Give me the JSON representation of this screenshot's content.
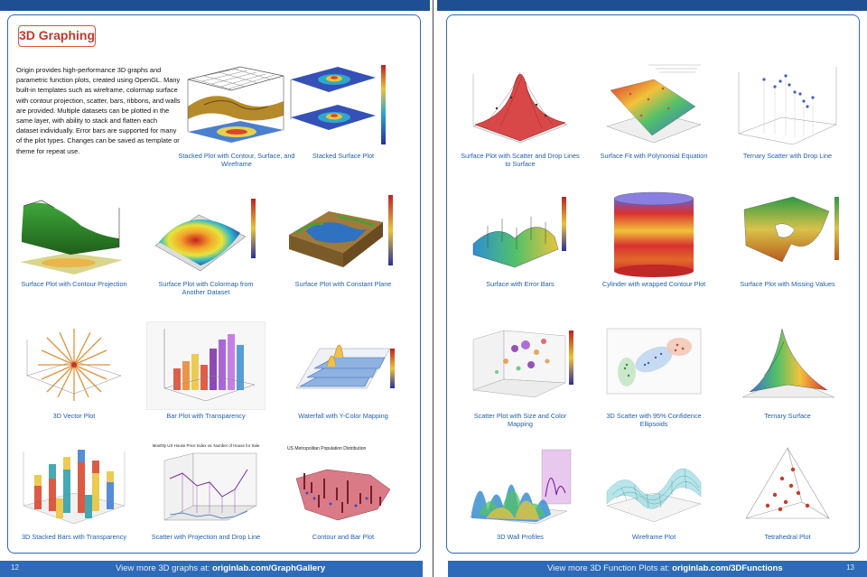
{
  "left_page": {
    "section_title": "3D Graphing",
    "intro": "Origin provides high-performance 3D graphs and parametric function plots, created using OpenGL. Many built-in templates such as wireframe, colormap surface with contour projection, scatter, bars, ribbons, and walls are provided. Multiple datasets can be plotted in the same layer, with ability to stack and flatten each dataset individually. Error bars are supported for many of the plot types. Changes can be saved as template or theme for repeat use.",
    "figures": [
      {
        "caption": "Stacked Plot with Contour, Surface, and Wireframe"
      },
      {
        "caption": "Stacked  Surface Plot"
      },
      {
        "caption": "Surface Plot with Contour Projection"
      },
      {
        "caption": "Surface Plot with Colormap from Another Dataset"
      },
      {
        "caption": "Surface Plot with Constant Plane"
      },
      {
        "caption": "3D Vector Plot"
      },
      {
        "caption": "Bar Plot with Transparency"
      },
      {
        "caption": "Waterfall with Y-Color Mapping"
      },
      {
        "caption": "3D Stacked Bars with Transparency"
      },
      {
        "caption": "Scatter with Projection and Drop Line"
      },
      {
        "caption": "Contour and Bar Plot"
      }
    ],
    "figure_titles": {
      "scatter_projection": "Monthly US House Price Index vs. Number of House for Sale",
      "contour_bar": "US Metropolitan Population Distribution"
    },
    "footer": {
      "page_number": "12",
      "link_prefix": "View more 3D graphs at: ",
      "link_url": "originlab.com/GraphGallery"
    }
  },
  "right_page": {
    "figures": [
      {
        "caption": "Surface  Plot with Scatter and Drop Lines to Surface"
      },
      {
        "caption": "Surface Fit with Polynomial Equation"
      },
      {
        "caption": "Ternary Scatter with Drop Line"
      },
      {
        "caption": "Surface with Error Bars"
      },
      {
        "caption": "Cylinder with wrapped Contour Plot"
      },
      {
        "caption": "Surface Plot with Missing Values"
      },
      {
        "caption": "Scatter Plot with Size and Color Mapping"
      },
      {
        "caption": "3D  Scatter with 95% Confidence Ellipsoids"
      },
      {
        "caption": "Ternary Surface"
      },
      {
        "caption": "3D Wall Profiles"
      },
      {
        "caption": "Wireframe Plot"
      },
      {
        "caption": "Tetrahedral Plot"
      }
    ],
    "footer": {
      "page_number": "13",
      "link_prefix": "View more 3D  Function Plots at: ",
      "link_url": "originlab.com/3DFunctions"
    }
  },
  "colors": {
    "brand_blue": "#2d6bb8",
    "caption_blue": "#1f5fae",
    "title_red": "#c0392b"
  }
}
